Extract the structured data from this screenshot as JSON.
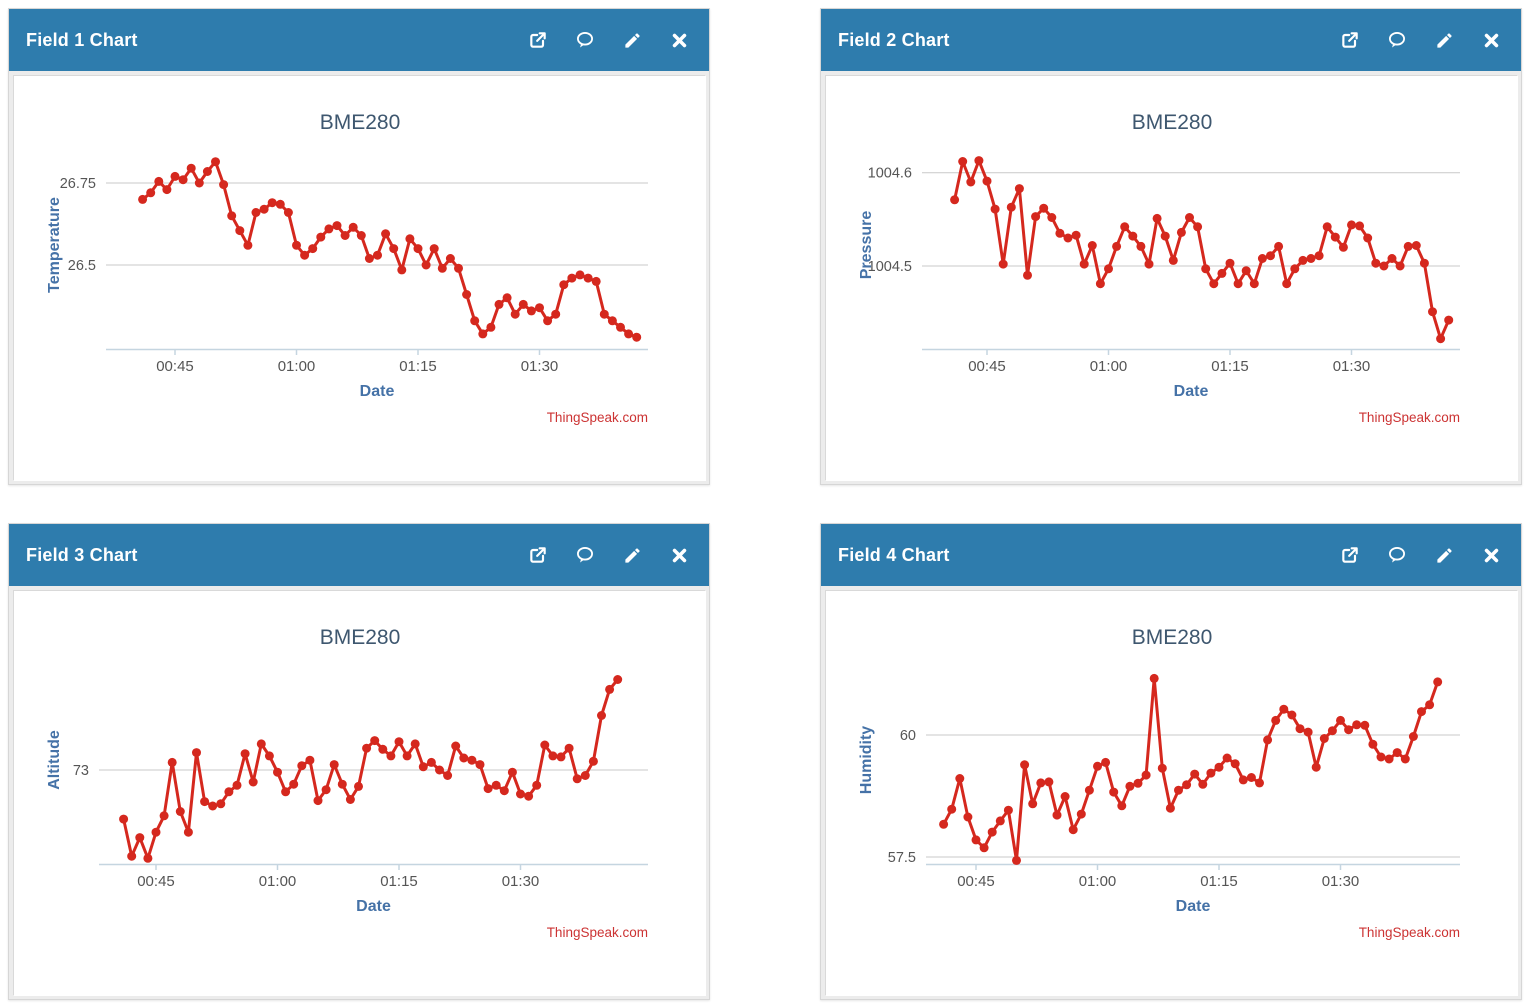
{
  "page": {
    "background": "#ffffff",
    "accent_blue": "#2e7cad",
    "line_red": "#d5281e",
    "axis_title_blue": "#4572a7",
    "chart_title_color": "#3e576f",
    "tick_label_color": "#555555",
    "credits_color": "#cc3333"
  },
  "panels": [
    {
      "header": {
        "title": "Field 1 Chart",
        "icons": [
          "external-link",
          "comment",
          "edit",
          "close"
        ]
      }
    },
    {
      "header": {
        "title": "Field 2 Chart",
        "icons": [
          "external-link",
          "comment",
          "edit",
          "close"
        ]
      }
    },
    {
      "header": {
        "title": "Field 3 Chart",
        "icons": [
          "external-link",
          "comment",
          "edit",
          "close"
        ]
      }
    },
    {
      "header": {
        "title": "Field 4 Chart",
        "icons": [
          "external-link",
          "comment",
          "edit",
          "close"
        ]
      }
    }
  ],
  "chart_data": [
    {
      "type": "line",
      "title": "BME280",
      "xlabel": "Date",
      "ylabel": "Temperature",
      "credits": "ThingSpeak.com",
      "x_tick_minutes": [
        45,
        60,
        75,
        90
      ],
      "x_tick_labels": [
        "00:45",
        "01:00",
        "01:15",
        "01:30"
      ],
      "y_gridlines": [
        {
          "label": "26.75",
          "value": 26.75
        },
        {
          "label": "26.5",
          "value": 26.5
        }
      ],
      "ylim": [
        26.244,
        26.878
      ],
      "x_start_minute": 41,
      "values": [
        26.7,
        26.72,
        26.755,
        26.73,
        26.77,
        26.76,
        26.795,
        26.75,
        26.785,
        26.815,
        26.745,
        26.65,
        26.605,
        26.56,
        26.66,
        26.67,
        26.69,
        26.685,
        26.66,
        26.56,
        26.53,
        26.55,
        26.585,
        26.61,
        26.62,
        26.59,
        26.615,
        26.59,
        26.52,
        26.53,
        26.595,
        26.55,
        26.485,
        26.58,
        26.55,
        26.5,
        26.55,
        26.49,
        26.52,
        26.49,
        26.41,
        26.33,
        26.29,
        26.31,
        26.38,
        26.4,
        26.35,
        26.38,
        26.36,
        26.37,
        26.33,
        26.35,
        26.44,
        26.46,
        26.47,
        26.46,
        26.45,
        26.35,
        26.33,
        26.31,
        26.29,
        26.28
      ]
    },
    {
      "type": "line",
      "title": "BME280",
      "xlabel": "Date",
      "ylabel": "Pressure",
      "credits": "ThingSpeak.com",
      "x_tick_minutes": [
        45,
        60,
        75,
        90
      ],
      "x_tick_labels": [
        "00:45",
        "01:00",
        "01:15",
        "01:30"
      ],
      "y_gridlines": [
        {
          "label": "1004.6",
          "value": 1004.6
        },
        {
          "label": "1004.5",
          "value": 1004.5
        }
      ],
      "ylim": [
        1004.411,
        1004.634
      ],
      "x_start_minute": 41,
      "values": [
        1004.571,
        1004.612,
        1004.59,
        1004.613,
        1004.591,
        1004.561,
        1004.502,
        1004.563,
        1004.583,
        1004.49,
        1004.553,
        1004.562,
        1004.552,
        1004.535,
        1004.53,
        1004.533,
        1004.502,
        1004.522,
        1004.481,
        1004.497,
        1004.521,
        1004.542,
        1004.532,
        1004.521,
        1004.502,
        1004.551,
        1004.532,
        1004.506,
        1004.536,
        1004.552,
        1004.542,
        1004.497,
        1004.481,
        1004.492,
        1004.503,
        1004.481,
        1004.495,
        1004.481,
        1004.508,
        1004.511,
        1004.521,
        1004.481,
        1004.497,
        1004.506,
        1004.508,
        1004.511,
        1004.542,
        1004.531,
        1004.52,
        1004.544,
        1004.543,
        1004.53,
        1004.503,
        1004.5,
        1004.508,
        1004.5,
        1004.521,
        1004.522,
        1004.503,
        1004.451,
        1004.422,
        1004.442
      ]
    },
    {
      "type": "line",
      "title": "BME280",
      "xlabel": "Date",
      "ylabel": "Altitude",
      "credits": "ThingSpeak.com",
      "x_tick_minutes": [
        45,
        60,
        75,
        90
      ],
      "x_tick_labels": [
        "00:45",
        "01:00",
        "01:15",
        "01:30"
      ],
      "y_gridlines": [
        {
          "label": "73",
          "value": 73
        }
      ],
      "ylim": [
        72.138,
        74.046
      ],
      "x_start_minute": 41,
      "values": [
        72.55,
        72.21,
        72.38,
        72.19,
        72.43,
        72.58,
        73.07,
        72.62,
        72.43,
        73.16,
        72.71,
        72.67,
        72.69,
        72.8,
        72.86,
        73.15,
        72.89,
        73.24,
        73.13,
        72.98,
        72.8,
        72.87,
        73.04,
        73.09,
        72.72,
        72.82,
        73.05,
        72.87,
        72.73,
        72.85,
        73.2,
        73.27,
        73.19,
        73.13,
        73.26,
        73.13,
        73.24,
        73.03,
        73.07,
        73.0,
        72.95,
        73.22,
        73.11,
        73.09,
        73.05,
        72.83,
        72.86,
        72.81,
        72.98,
        72.78,
        72.76,
        72.86,
        73.23,
        73.13,
        73.12,
        73.2,
        72.92,
        72.95,
        73.08,
        73.5,
        73.74,
        73.83
      ]
    },
    {
      "type": "line",
      "title": "BME280",
      "xlabel": "Date",
      "ylabel": "Humidity",
      "credits": "ThingSpeak.com",
      "x_tick_minutes": [
        45,
        60,
        75,
        90
      ],
      "x_tick_labels": [
        "00:45",
        "01:00",
        "01:15",
        "01:30"
      ],
      "y_gridlines": [
        {
          "label": "60",
          "value": 60
        },
        {
          "label": "57.5",
          "value": 57.5
        }
      ],
      "ylim": [
        57.357,
        61.62
      ],
      "x_start_minute": 41,
      "values": [
        58.17,
        58.48,
        59.11,
        58.32,
        57.85,
        57.69,
        58.01,
        58.24,
        58.46,
        57.43,
        59.39,
        58.59,
        59.02,
        59.04,
        58.36,
        58.74,
        58.06,
        58.38,
        58.87,
        59.36,
        59.44,
        58.83,
        58.55,
        58.95,
        59.01,
        59.18,
        61.16,
        59.32,
        58.5,
        58.87,
        58.98,
        59.2,
        58.99,
        59.22,
        59.34,
        59.53,
        59.41,
        59.08,
        59.13,
        59.02,
        59.9,
        60.3,
        60.53,
        60.41,
        60.13,
        60.06,
        59.34,
        59.93,
        60.09,
        60.3,
        60.11,
        60.21,
        60.2,
        59.81,
        59.55,
        59.51,
        59.64,
        59.51,
        59.97,
        60.48,
        60.62,
        61.09
      ]
    }
  ]
}
